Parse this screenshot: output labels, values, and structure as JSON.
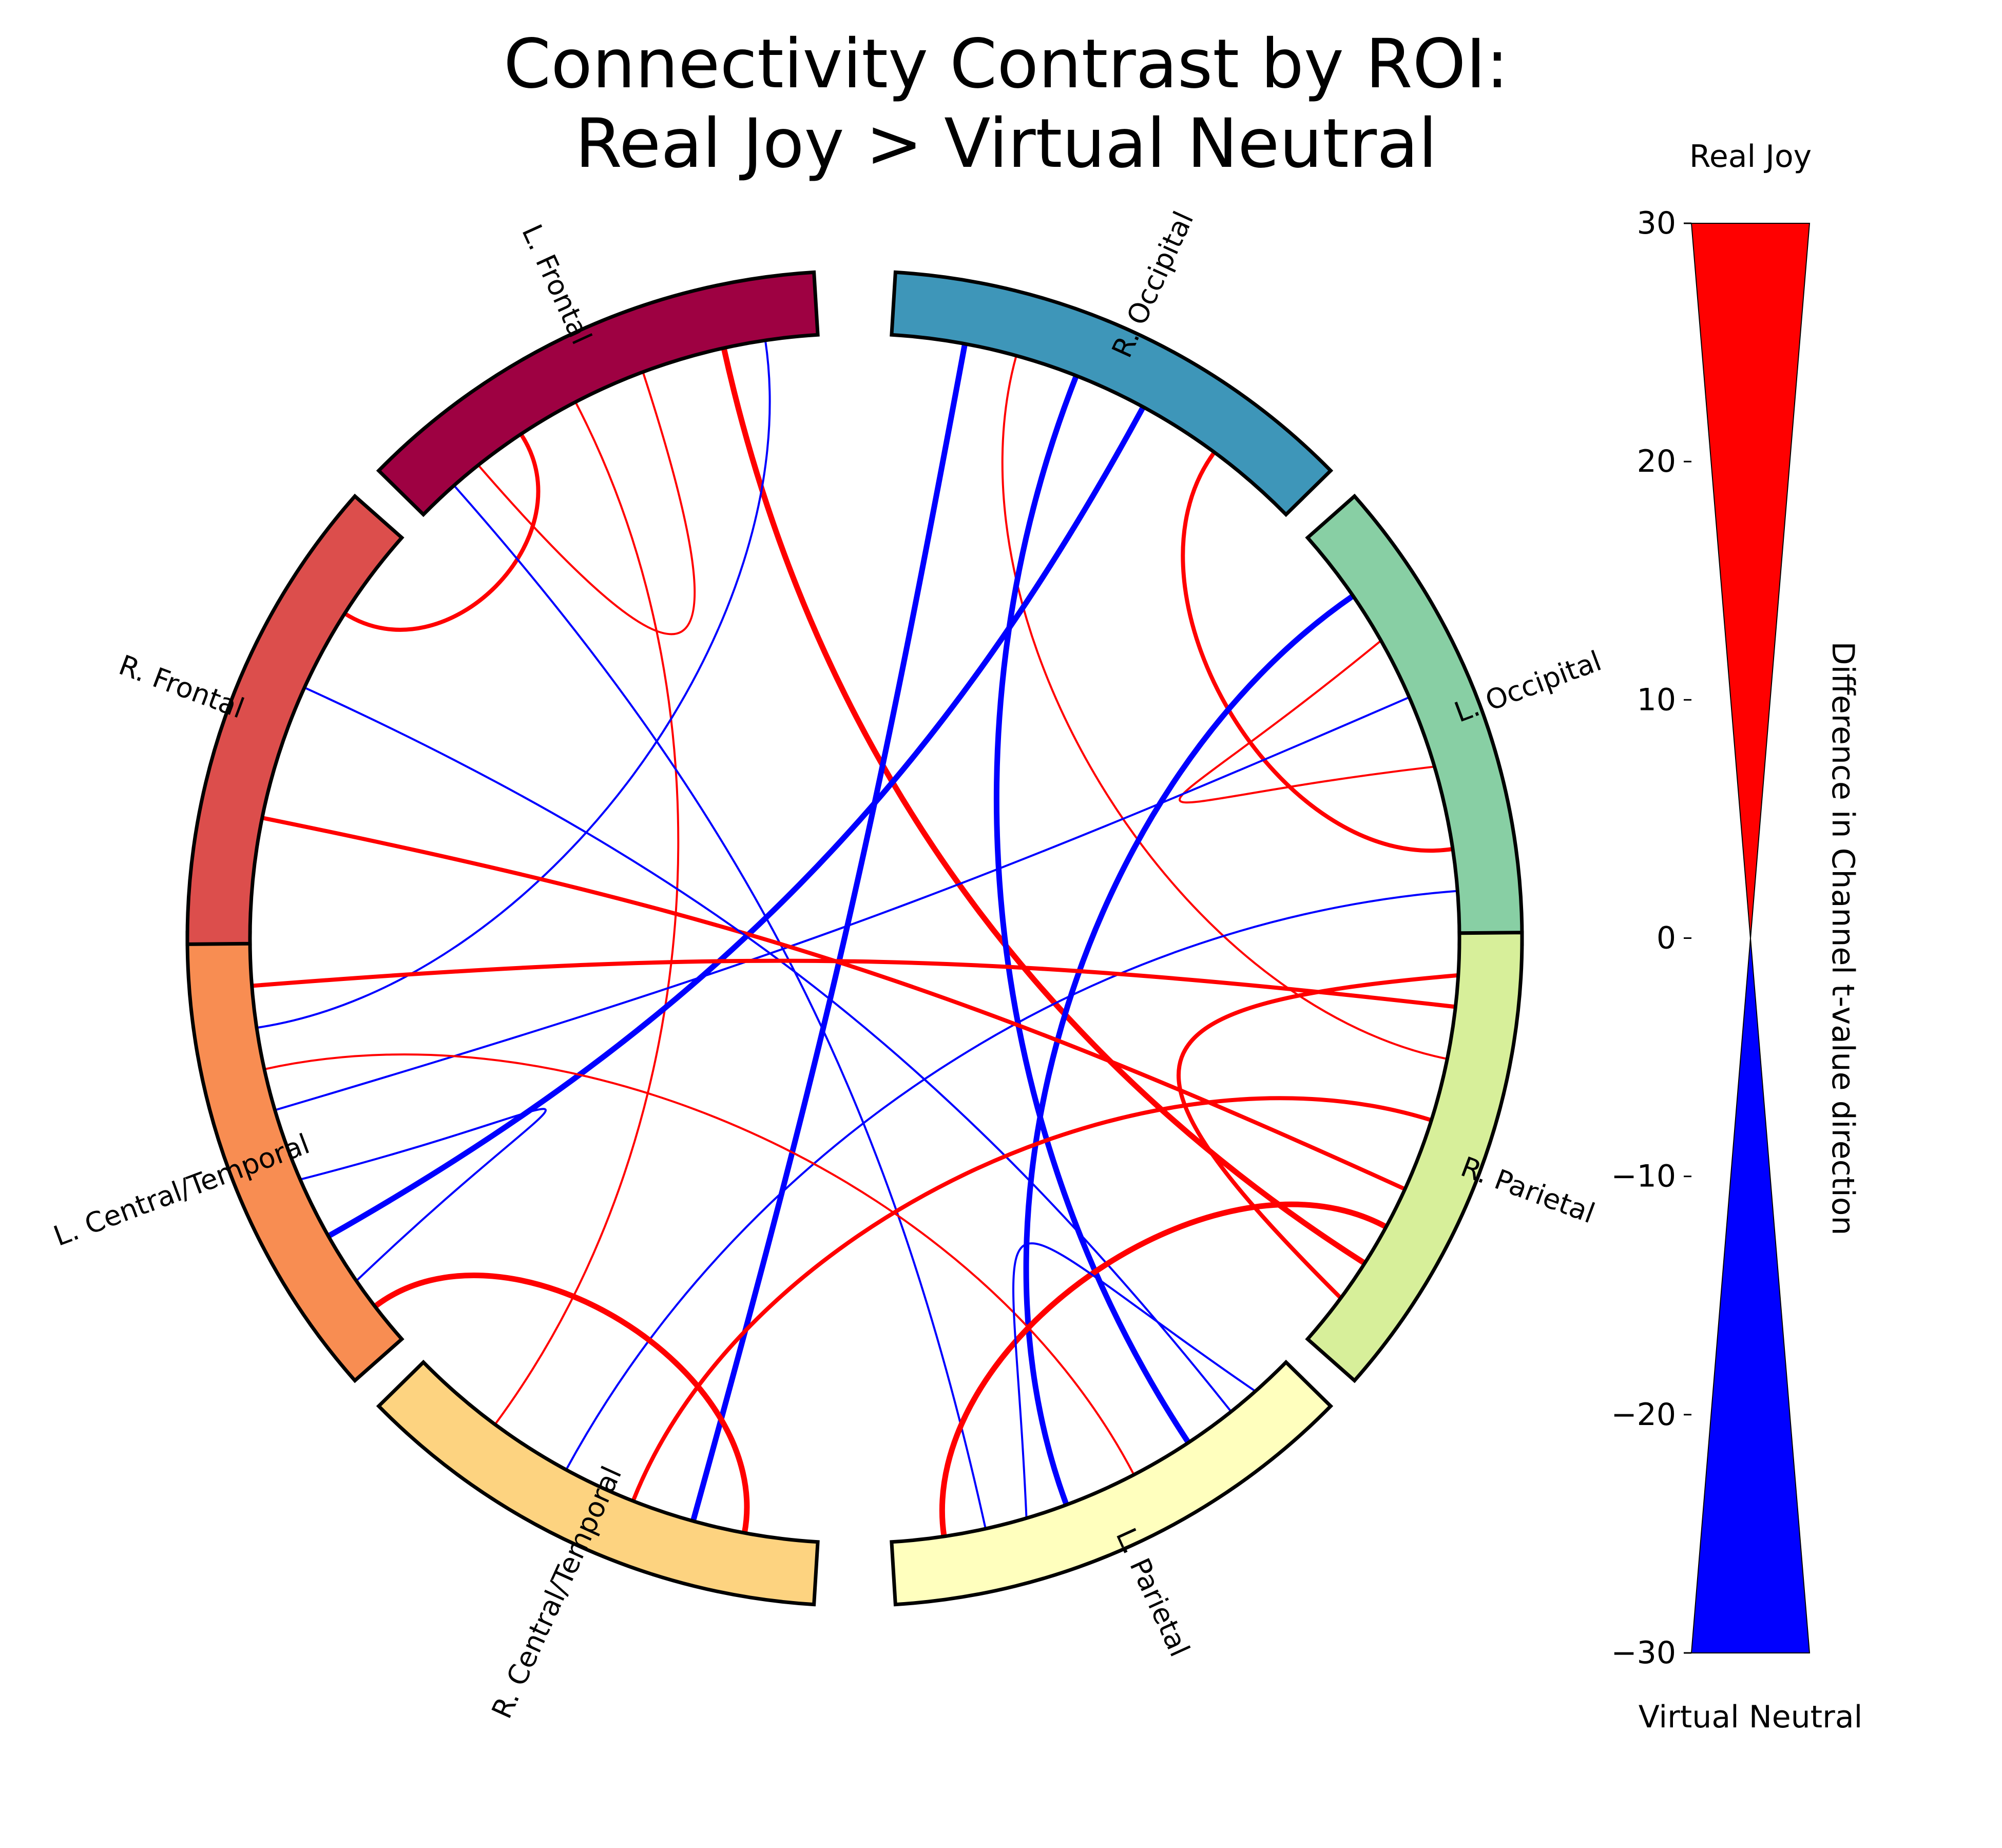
{
  "title": {
    "line1": "Connectivity Contrast by ROI:",
    "line2": "Real Joy > Virtual Neutral"
  },
  "rois": [
    {
      "name": "L. Frontal",
      "color": "#9e0142"
    },
    {
      "name": "R. Occipital",
      "color": "#3e96b9"
    },
    {
      "name": "L. Occipital",
      "color": "#88cfa4"
    },
    {
      "name": "R. Parietal",
      "color": "#d7ef9a"
    },
    {
      "name": "L. Parietal",
      "color": "#ffffbe"
    },
    {
      "name": "R. Central/Temporal",
      "color": "#fdd380"
    },
    {
      "name": "L. Central/Temporal",
      "color": "#f88d52"
    },
    {
      "name": "R. Frontal",
      "color": "#dc4e4c"
    }
  ],
  "connections": [
    {
      "from": "L. Frontal",
      "to": "R. Parietal",
      "direction": "Real Joy",
      "strength": "strong"
    },
    {
      "from": "L. Frontal",
      "to": "R. Frontal",
      "direction": "Real Joy",
      "strength": "medium"
    },
    {
      "from": "L. Frontal",
      "to": "L. Frontal",
      "direction": "Real Joy",
      "strength": "weak"
    },
    {
      "from": "L. Frontal",
      "to": "R. Central/Temporal",
      "direction": "Real Joy",
      "strength": "weak"
    },
    {
      "from": "L. Frontal",
      "to": "L. Central/Temporal",
      "direction": "Virtual Neutral",
      "strength": "weak"
    },
    {
      "from": "L. Frontal",
      "to": "L. Parietal",
      "direction": "Virtual Neutral",
      "strength": "weak"
    },
    {
      "from": "R. Occipital",
      "to": "L. Occipital",
      "direction": "Real Joy",
      "strength": "medium"
    },
    {
      "from": "R. Occipital",
      "to": "R. Parietal",
      "direction": "Real Joy",
      "strength": "weak"
    },
    {
      "from": "R. Occipital",
      "to": "L. Central/Temporal",
      "direction": "Virtual Neutral",
      "strength": "strong"
    },
    {
      "from": "R. Occipital",
      "to": "R. Central/Temporal",
      "direction": "Virtual Neutral",
      "strength": "strong"
    },
    {
      "from": "R. Occipital",
      "to": "L. Parietal",
      "direction": "Virtual Neutral",
      "strength": "strong"
    },
    {
      "from": "L. Occipital",
      "to": "L. Occipital",
      "direction": "Real Joy",
      "strength": "weak"
    },
    {
      "from": "L. Occipital",
      "to": "L. Parietal",
      "direction": "Virtual Neutral",
      "strength": "strong"
    },
    {
      "from": "L. Occipital",
      "to": "L. Central/Temporal",
      "direction": "Virtual Neutral",
      "strength": "weak"
    },
    {
      "from": "L. Occipital",
      "to": "R. Central/Temporal",
      "direction": "Virtual Neutral",
      "strength": "weak"
    },
    {
      "from": "R. Frontal",
      "to": "R. Parietal",
      "direction": "Real Joy",
      "strength": "medium"
    },
    {
      "from": "R. Frontal",
      "to": "L. Parietal",
      "direction": "Virtual Neutral",
      "strength": "weak"
    },
    {
      "from": "L. Central/Temporal",
      "to": "L. Central/Temporal",
      "direction": "Virtual Neutral",
      "strength": "weak"
    },
    {
      "from": "L. Central/Temporal",
      "to": "R. Parietal",
      "direction": "Real Joy",
      "strength": "medium"
    },
    {
      "from": "L. Central/Temporal",
      "to": "R. Central/Temporal",
      "direction": "Real Joy",
      "strength": "strong"
    },
    {
      "from": "L. Central/Temporal",
      "to": "L. Parietal",
      "direction": "Real Joy",
      "strength": "weak"
    },
    {
      "from": "R. Central/Temporal",
      "to": "R. Parietal",
      "direction": "Real Joy",
      "strength": "medium"
    },
    {
      "from": "R. Parietal",
      "to": "R. Parietal",
      "direction": "Real Joy",
      "strength": "medium"
    },
    {
      "from": "R. Parietal",
      "to": "L. Parietal",
      "direction": "Real Joy",
      "strength": "strong"
    },
    {
      "from": "L. Parietal",
      "to": "L. Parietal",
      "direction": "Virtual Neutral",
      "strength": "weak"
    }
  ],
  "colorbar": {
    "top_label": "Real Joy",
    "bottom_label": "Virtual Neutral",
    "axis_label": "Difference in Channel t-value direction",
    "range": [
      -30,
      30
    ],
    "ticks": [
      "30",
      "20",
      "10",
      "0",
      "−10",
      "−20",
      "−30"
    ],
    "positive_color": "#ff0000",
    "negative_color": "#0000ff"
  }
}
